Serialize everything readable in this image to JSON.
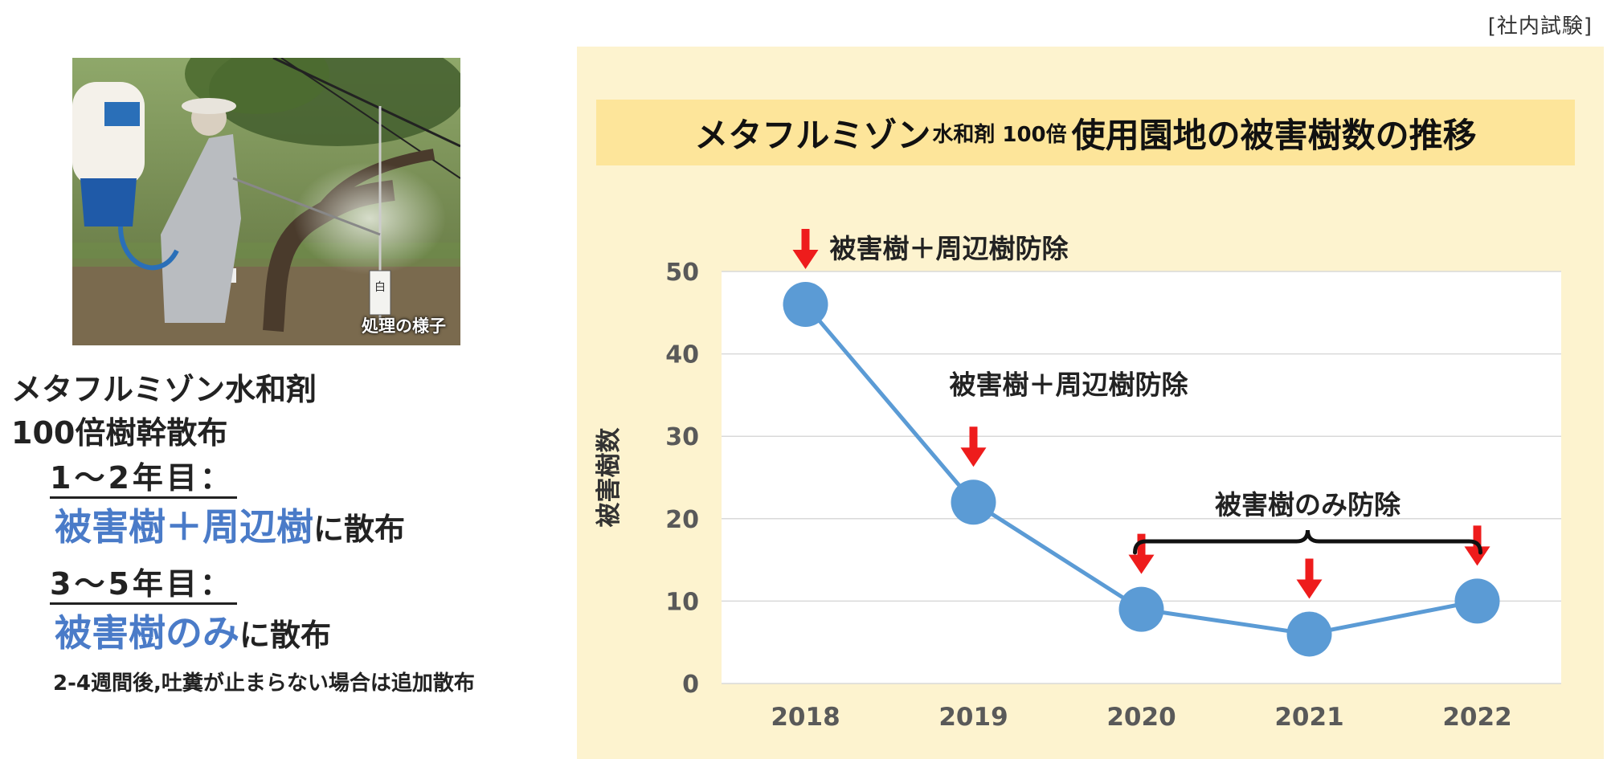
{
  "corner_note": "[社内試験]",
  "photo": {
    "caption": "処理の様子",
    "stake_label": "白"
  },
  "method": {
    "line1": "メタフルミゾン水和剤",
    "line2": "100倍樹幹散布"
  },
  "phase1": {
    "label": "1～2年目：",
    "highlight": "被害樹＋周辺樹",
    "tail": "に散布"
  },
  "phase2": {
    "label": "3～5年目：",
    "highlight": "被害樹のみ",
    "tail": "に散布"
  },
  "note": "2-4週間後,吐糞が止まらない場合は追加散布",
  "chart_title": {
    "main": "メタフルミゾン",
    "sub": "水和剤 100倍",
    "rest": "使用園地の被害樹数の推移"
  },
  "chart_data": {
    "type": "line",
    "title": "メタフルミゾン水和剤 100倍 使用園地の被害樹数の推移",
    "xlabel": "",
    "ylabel": "被害樹数",
    "categories": [
      "2018",
      "2019",
      "2020",
      "2021",
      "2022"
    ],
    "values": [
      46,
      22,
      9,
      6,
      10
    ],
    "ylim": [
      0,
      50
    ],
    "yticks": [
      0,
      10,
      20,
      30,
      40,
      50
    ],
    "grid": true,
    "legend": "none",
    "series_color": "#5b9bd5",
    "annotations": [
      {
        "text": "被害樹＋周辺樹防除",
        "category": "2018"
      },
      {
        "text": "被害樹＋周辺樹防除",
        "category": "2019"
      },
      {
        "text": "被害樹のみ防除",
        "categories": [
          "2020",
          "2021",
          "2022"
        ]
      }
    ],
    "arrow_color": "#ee1c1c"
  }
}
